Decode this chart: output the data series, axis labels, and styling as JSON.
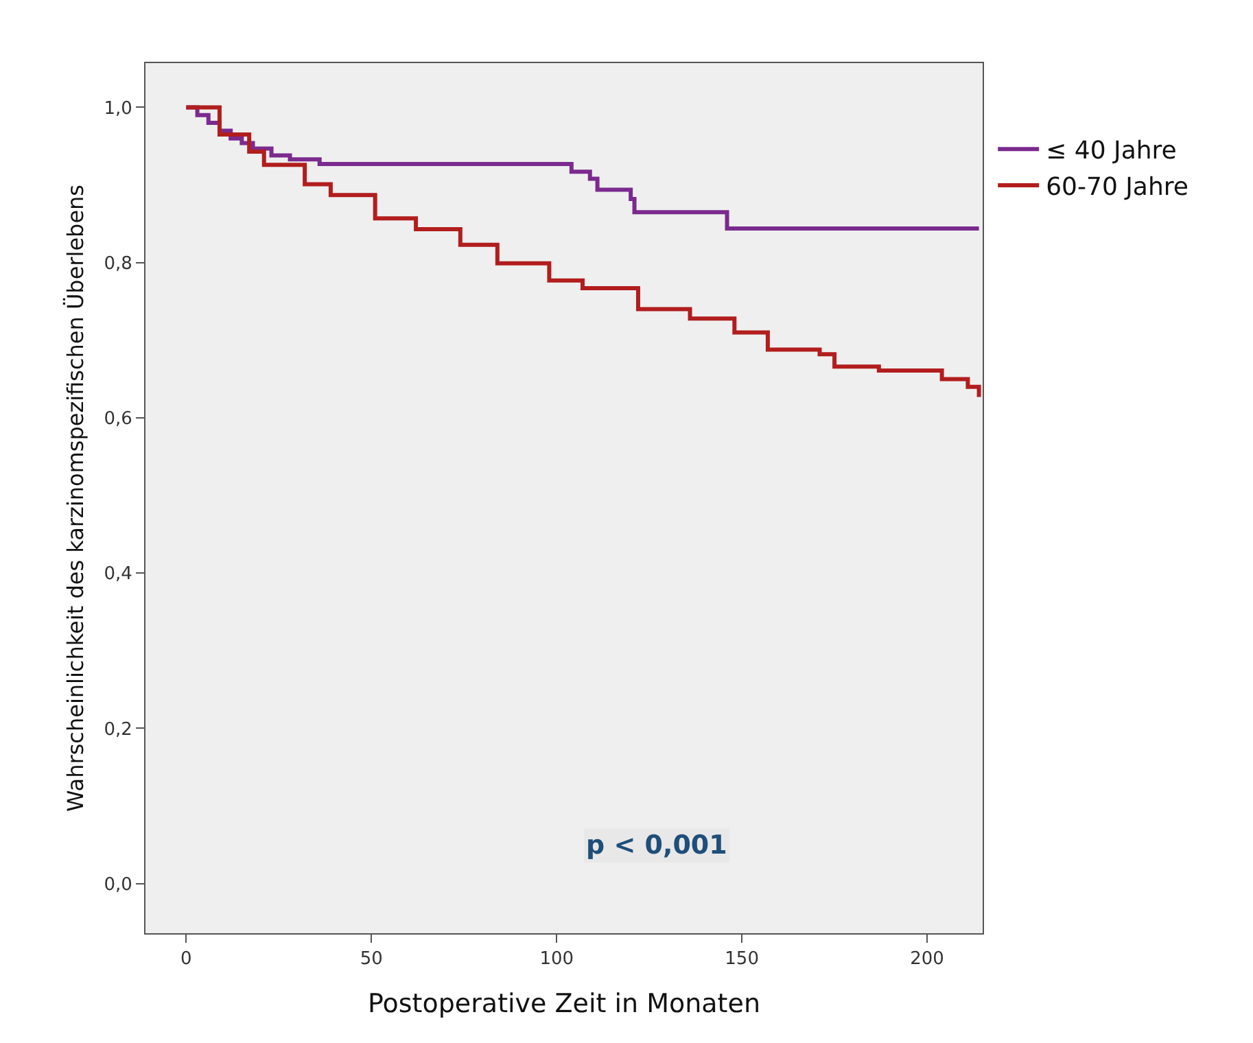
{
  "chart_data": {
    "type": "step",
    "xlabel": "Postoperative Zeit in Monaten",
    "ylabel": "Wahrscheinlichkeit des karzinomspezifischen Überlebens",
    "xlim": [
      -11,
      215
    ],
    "xticks": [
      0,
      50,
      100,
      150,
      200
    ],
    "ylim": [
      -0.064,
      1.057
    ],
    "yticks": [
      {
        "value": 0,
        "label": "0,0"
      },
      {
        "value": 0.2,
        "label": "0,2"
      },
      {
        "value": 0.4,
        "label": "0,4"
      },
      {
        "value": 0.6,
        "label": "0,6"
      },
      {
        "value": 0.8,
        "label": "0,8"
      },
      {
        "value": 1,
        "label": "1,0"
      }
    ],
    "grid": false,
    "legend": "right",
    "marker": "none",
    "line_style": "solid",
    "annotations": [
      "p < 0,001"
    ],
    "series": [
      {
        "name": "≤ 40 Jahre",
        "color": "#7b2a8e",
        "x": [
          0,
          3,
          6,
          9,
          12,
          15,
          18,
          23,
          28,
          36,
          104,
          109,
          111,
          120,
          121,
          146,
          214
        ],
        "values": [
          1.0,
          0.99,
          0.98,
          0.97,
          0.96,
          0.954,
          0.947,
          0.938,
          0.933,
          0.927,
          0.917,
          0.908,
          0.894,
          0.882,
          0.865,
          0.844,
          0.844
        ]
      },
      {
        "name": "60-70 Jahre",
        "color": "#b21d1d",
        "x": [
          0,
          9,
          17,
          21,
          32,
          39,
          51,
          62,
          74,
          84,
          98,
          107,
          122,
          136,
          148,
          157,
          171,
          175,
          187,
          204,
          211,
          214
        ],
        "values": [
          1.0,
          0.965,
          0.943,
          0.926,
          0.901,
          0.887,
          0.857,
          0.843,
          0.823,
          0.799,
          0.777,
          0.767,
          0.74,
          0.728,
          0.71,
          0.688,
          0.682,
          0.666,
          0.661,
          0.65,
          0.64,
          0.627
        ]
      }
    ]
  }
}
